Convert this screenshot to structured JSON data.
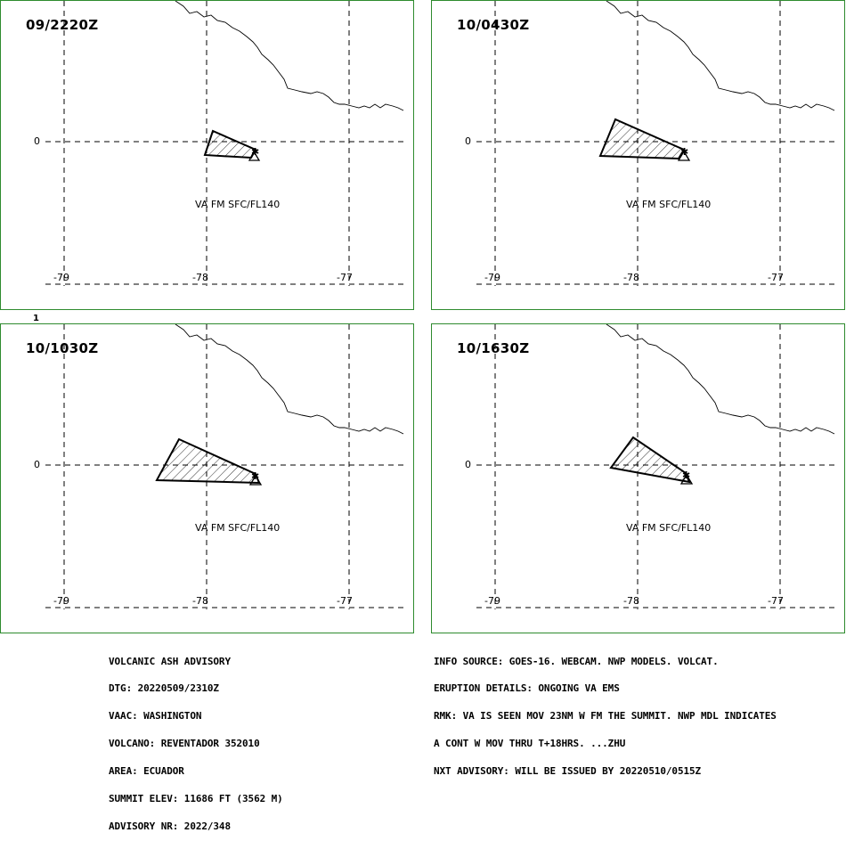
{
  "panels": [
    {
      "time": "09/2220Z",
      "label": "VA FM SFC/FL140"
    },
    {
      "time": "10/0430Z",
      "label": "VA FM SFC/FL140"
    },
    {
      "time": "10/1030Z",
      "label": "VA FM SFC/FL140"
    },
    {
      "time": "10/1630Z",
      "label": "VA FM SFC/FL140"
    }
  ],
  "axes": {
    "lat_zero": "0",
    "lon_79": "-79",
    "lon_78": "-78",
    "lon_77": "-77"
  },
  "stray_mark": "1",
  "left_block": [
    "VOLCANIC ASH ADVISORY",
    "DTG: 20220509/2310Z",
    "VAAC: WASHINGTON",
    "VOLCANO: REVENTADOR 352010",
    "AREA: ECUADOR",
    "SUMMIT ELEV: 11686 FT (3562 M)",
    "ADVISORY NR: 2022/348"
  ],
  "right_block": [
    "INFO SOURCE: GOES-16. WEBCAM. NWP MODELS. VOLCAT.",
    "ERUPTION DETAILS: ONGOING VA EMS",
    "RMK: VA IS SEEN MOV 23NM W FM THE SUMMIT. NWP MDL INDICATES",
    "A CONT W MOV THRU T+18HRS. ...ZHU",
    "NXT ADVISORY: WILL BE ISSUED BY 20220510/0515Z"
  ]
}
